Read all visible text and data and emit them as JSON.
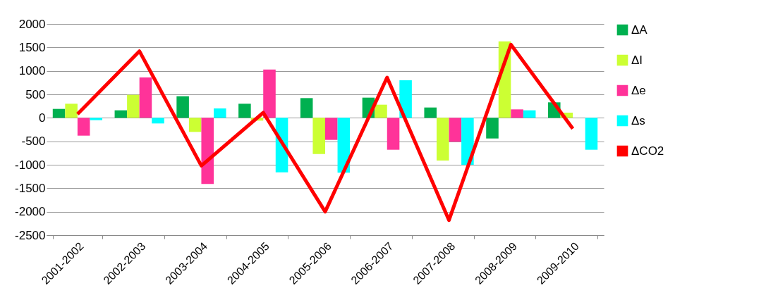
{
  "chart_data": {
    "type": "bar",
    "categories": [
      "2001-2002",
      "2002-2003",
      "2003-2004",
      "2004-2005",
      "2005-2006",
      "2006-2007",
      "2007-2008",
      "2008-2009",
      "2009-2010"
    ],
    "series": [
      {
        "name": "ΔA",
        "color": "#00b050",
        "values": [
          190,
          160,
          460,
          300,
          420,
          430,
          220,
          -440,
          330
        ]
      },
      {
        "name": "ΔI",
        "color": "#ccff33",
        "values": [
          300,
          490,
          -300,
          -60,
          -770,
          280,
          -910,
          1630,
          110
        ]
      },
      {
        "name": "Δe",
        "color": "#ff3399",
        "values": [
          -380,
          860,
          -1410,
          1030,
          -470,
          -680,
          -510,
          180,
          0
        ]
      },
      {
        "name": "Δs",
        "color": "#00ffff",
        "values": [
          -50,
          -120,
          200,
          -1160,
          -1170,
          800,
          -1000,
          160,
          -680
        ]
      },
      {
        "name": "ΔCO2",
        "color": "#ff0000",
        "type": "line",
        "values": [
          80,
          1420,
          -1020,
          110,
          -2000,
          860,
          -2180,
          1560,
          -230
        ]
      }
    ],
    "ylim": [
      -2500,
      2000
    ],
    "yticks": [
      -2500,
      -2000,
      -1500,
      -1000,
      -500,
      0,
      500,
      1000,
      1500,
      2000
    ],
    "grid": "y",
    "legend": "right"
  }
}
